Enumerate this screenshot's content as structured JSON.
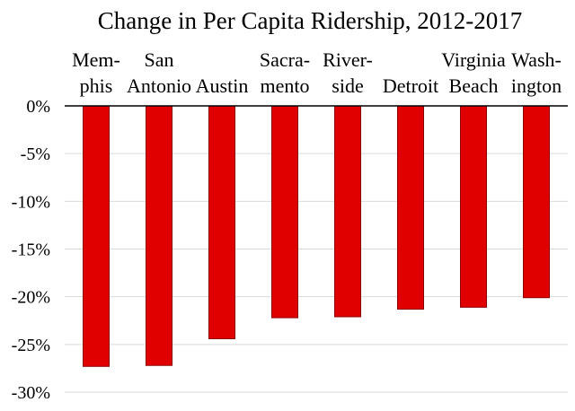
{
  "chart_data": {
    "type": "bar",
    "title": "Change in Per Capita Ridership, 2012-2017",
    "xlabel": "",
    "ylabel": "",
    "categories": [
      [
        "Mem-",
        "phis"
      ],
      [
        "San",
        "Antonio"
      ],
      [
        "",
        "Austin"
      ],
      [
        "Sacra-",
        "mento"
      ],
      [
        "River-",
        "side"
      ],
      [
        "",
        "Detroit"
      ],
      [
        "Virginia",
        "Beach"
      ],
      [
        "Wash-",
        "ington"
      ]
    ],
    "values": [
      -27.3,
      -27.2,
      -24.4,
      -22.2,
      -22.1,
      -21.3,
      -21.1,
      -20.1
    ],
    "ylim": [
      -30,
      0
    ],
    "yticks": [
      0,
      -5,
      -10,
      -15,
      -20,
      -25,
      -30
    ],
    "ytick_labels": [
      "0%",
      "-5%",
      "-10%",
      "-15%",
      "-20%",
      "-25%",
      "-30%"
    ],
    "grid": true,
    "legend": "none",
    "colors": {
      "bar": "#e00000",
      "bar_edge": "#8b0000"
    }
  }
}
